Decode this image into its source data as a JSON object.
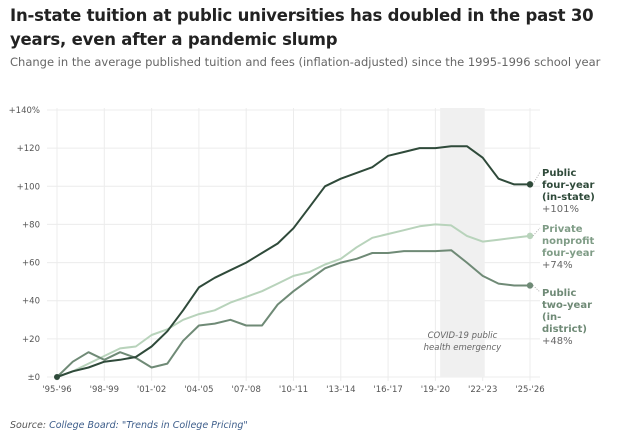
{
  "header": {
    "title": "In-state tuition at public universities has doubled in the past 30 years, even after a pandemic slump",
    "subtitle": "Change in the average published tuition and fees (inflation-adjusted) since the 1995-1996 school year"
  },
  "source": {
    "prefix": "Source: ",
    "link_text": "College Board: \"Trends in College Pricing\""
  },
  "chart_data": {
    "type": "line",
    "title": "In-state tuition at public universities has doubled in the past 30 years, even after a pandemic slump",
    "subtitle": "Change in the average published tuition and fees (inflation-adjusted) since the 1995-1996 school year",
    "xlabel": "",
    "ylabel": "",
    "x": [
      "'95-'96",
      "'96-'97",
      "'97-'98",
      "'98-'99",
      "'99-'00",
      "'00-'01",
      "'01-'02",
      "'02-'03",
      "'03-'04",
      "'04-'05",
      "'05-'06",
      "'06-'07",
      "'07-'08",
      "'08-'09",
      "'09-'10",
      "'10-'11",
      "'11-'12",
      "'12-'13",
      "'13-'14",
      "'14-'15",
      "'15-'16",
      "'16-'17",
      "'17-'18",
      "'18-'19",
      "'19-'20",
      "'20-'21",
      "'21-'22",
      "'22-'23",
      "'23-'24",
      "'24-'25",
      "'25-'26"
    ],
    "x_tick_labels": [
      "'95-'96",
      "'98-'99",
      "'01-'02",
      "'04-'05",
      "'07-'08",
      "'10-'11",
      "'13-'14",
      "'16-'17",
      "'19-'20",
      "'22-'23",
      "'25-'26"
    ],
    "y_tick_labels": [
      "±0",
      "+20",
      "+40",
      "+60",
      "+80",
      "+100",
      "+120",
      "+140%"
    ],
    "y_ticks": [
      0,
      20,
      40,
      60,
      80,
      100,
      120,
      140
    ],
    "ylim": [
      0,
      140
    ],
    "grid": true,
    "legend": "direct labels at right end of lines",
    "series": [
      {
        "name": "Public four-year (in-state)",
        "label_lines": [
          "Public",
          "four-year",
          "(in-state)"
        ],
        "end_label": "+101%",
        "color": "#2f4a3a",
        "values": [
          0,
          3,
          5,
          8,
          9,
          10.5,
          16,
          24,
          35,
          47,
          52,
          56,
          60,
          65,
          70,
          78,
          89,
          100,
          104,
          107,
          110,
          116,
          118,
          120,
          120,
          121,
          121,
          115,
          104,
          101,
          101
        ]
      },
      {
        "name": "Private nonprofit four-year",
        "label_lines": [
          "Private",
          "nonprofit",
          "four-year"
        ],
        "end_label": "+74%",
        "color": "#b8d3bb",
        "values": [
          0,
          3,
          7,
          11,
          15,
          16,
          22,
          25,
          30,
          33,
          35,
          39,
          42,
          45,
          49,
          53,
          55,
          59,
          62,
          68,
          73,
          75,
          77,
          79,
          80,
          79.5,
          74,
          71,
          72,
          73,
          74
        ]
      },
      {
        "name": "Public two-year (in-district)",
        "label_lines": [
          "Public",
          "two-year",
          "(in-",
          "district)"
        ],
        "end_label": "+48%",
        "color": "#6f8a76",
        "values": [
          0,
          8,
          13,
          9,
          13,
          10,
          5,
          7,
          19,
          27,
          28,
          30,
          27,
          27,
          38,
          45,
          51,
          57,
          60,
          62,
          65,
          65,
          66,
          66,
          66,
          66.5,
          60,
          53,
          49,
          48,
          48
        ]
      }
    ],
    "annotations": [
      {
        "text_lines": [
          "COVID-19 public",
          "health emergency"
        ],
        "type": "shaded-range",
        "x_start": "'20-'21",
        "x_end": "'22-'23"
      }
    ]
  }
}
